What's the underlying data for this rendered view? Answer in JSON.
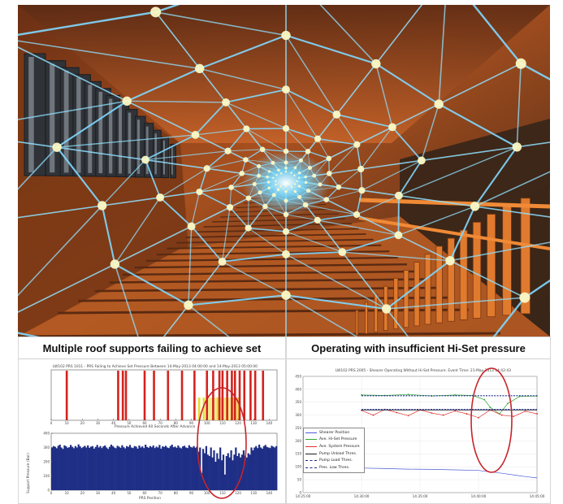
{
  "left_panel": {
    "heading": "Multiple roof supports failing to achieve set",
    "top_chart_title": "LW102 PRS 1011 - PRS Failing to Achieve Set Pressure Between 14-May-2013 04:00:00 and 14-May-2013 05:00:00",
    "bottom_chart_title": "Pressure Achieved 60 Seconds After Advance",
    "ylabel": "Support Pressure (Bar)",
    "xlabel": "PRS Position"
  },
  "right_panel": {
    "heading": "Operating with insufficient Hi-Set pressure",
    "chart_title": "LW102 PRS 2005 - Shearer Operating Without Hi-Set Pressure. Event Time: 21-May-2013 14:42:43"
  },
  "chart_data": [
    {
      "type": "bar",
      "title": "LW102 PRS 1011 - PRS Failing to Achieve Set Pressure Between 14-May-2013 04:00:00 and 14-May-2013 05:00:00",
      "xlim": [
        0,
        145
      ],
      "ylim": [
        0,
        1
      ],
      "x_ticks": [
        0,
        10,
        20,
        30,
        40,
        50,
        60,
        70,
        80,
        90,
        100,
        110,
        120,
        130,
        140
      ],
      "red_bar_positions": [
        10,
        43,
        46,
        48,
        60,
        66,
        75,
        84,
        92,
        100,
        104,
        108,
        110,
        113,
        116,
        118,
        121,
        124,
        128,
        131,
        136
      ],
      "yellow_bar_positions": [
        95,
        98,
        107,
        110,
        113,
        117,
        120
      ],
      "colors": {
        "fail": "#d4231f",
        "partial": "#e7dc36"
      }
    },
    {
      "type": "bar",
      "title": "Pressure Achieved 60 Seconds After Advance",
      "ylabel": "Support Pressure (Bar)",
      "xlabel": "PRS Position",
      "xlim": [
        0,
        145
      ],
      "ylim": [
        0,
        400
      ],
      "y_ticks": [
        0,
        100,
        200,
        300,
        400
      ],
      "x_ticks": [
        0,
        10,
        20,
        30,
        40,
        50,
        60,
        70,
        80,
        90,
        100,
        110,
        120,
        130,
        140
      ],
      "values": [
        300,
        310,
        305,
        295,
        312,
        320,
        300,
        290,
        315,
        308,
        298,
        302,
        318,
        305,
        295,
        310,
        300,
        322,
        308,
        296,
        304,
        312,
        300,
        315,
        298,
        306,
        310,
        292,
        304,
        318,
        300,
        310,
        296,
        308,
        314,
        300,
        290,
        305,
        320,
        310,
        300,
        295,
        312,
        306,
        298,
        316,
        302,
        294,
        310,
        304,
        318,
        300,
        296,
        310,
        306,
        292,
        314,
        300,
        308,
        296,
        320,
        304,
        298,
        310,
        302,
        314,
        296,
        306,
        300,
        318,
        292,
        308,
        304,
        312,
        300,
        296,
        310,
        320,
        302,
        306,
        298,
        314,
        300,
        294,
        308,
        312,
        300,
        296,
        316,
        304,
        300,
        310,
        298,
        306,
        270,
        300,
        120,
        290,
        260,
        310,
        250,
        240,
        300,
        230,
        280,
        200,
        260,
        220,
        300,
        210,
        250,
        110,
        240,
        260,
        230,
        280,
        210,
        250,
        300,
        240,
        260,
        230,
        250,
        280,
        240,
        230,
        260,
        250,
        300,
        280,
        300,
        310,
        296,
        320,
        300,
        292,
        310,
        318,
        304,
        300,
        296,
        312,
        306,
        300,
        310
      ],
      "color": "#1f2f86"
    },
    {
      "type": "line",
      "title": "LW102 PRS 2005 - Shearer Operating Without Hi-Set Pressure. Event Time: 21-May-2013 14:42:43",
      "ylim": [
        0,
        450
      ],
      "y_ticks": [
        0,
        50,
        100,
        150,
        200,
        250,
        300,
        350,
        400,
        450
      ],
      "x_tick_labels": [
        "14:25:00",
        "14:30:00",
        "14:35:00",
        "14:40:00",
        "14:45:00"
      ],
      "x_minutes": [
        0,
        5,
        10,
        15,
        20
      ],
      "series": [
        {
          "name": "Shearer Position",
          "color": "#4b5bd6",
          "x": [
            5,
            7,
            9,
            11,
            13,
            15,
            17,
            19,
            20
          ],
          "y": [
            95,
            93,
            91,
            90,
            88,
            86,
            75,
            62,
            57
          ]
        },
        {
          "name": "Ave. Hi-Set Pressure",
          "color": "#2fa52f",
          "x": [
            5,
            7,
            9,
            11,
            13,
            14.5,
            15.5,
            16,
            16.8,
            17.5,
            18.5,
            20
          ],
          "y": [
            378,
            376,
            380,
            374,
            378,
            376,
            360,
            330,
            305,
            345,
            372,
            374
          ]
        },
        {
          "name": "Ave. System Pressure",
          "color": "#e23131",
          "x": [
            5,
            6,
            7,
            8,
            9,
            10,
            11,
            12,
            13,
            14,
            15,
            16,
            17,
            18,
            19,
            20
          ],
          "y": [
            318,
            300,
            322,
            310,
            298,
            320,
            308,
            300,
            316,
            305,
            290,
            320,
            300,
            295,
            315,
            305
          ]
        },
        {
          "name": "Pump Unload Thres.",
          "color": "#1a1a1a",
          "x": [
            5,
            20
          ],
          "y": [
            320,
            320
          ]
        },
        {
          "name": "Pump Load Thres.",
          "color": "#1c2a8a",
          "x": [
            5,
            20
          ],
          "y": [
            322,
            322
          ]
        },
        {
          "name": "Pres. Low Thres.",
          "color": "#1c2a8a",
          "x": [
            5,
            20
          ],
          "y": [
            375,
            375
          ]
        }
      ]
    }
  ]
}
